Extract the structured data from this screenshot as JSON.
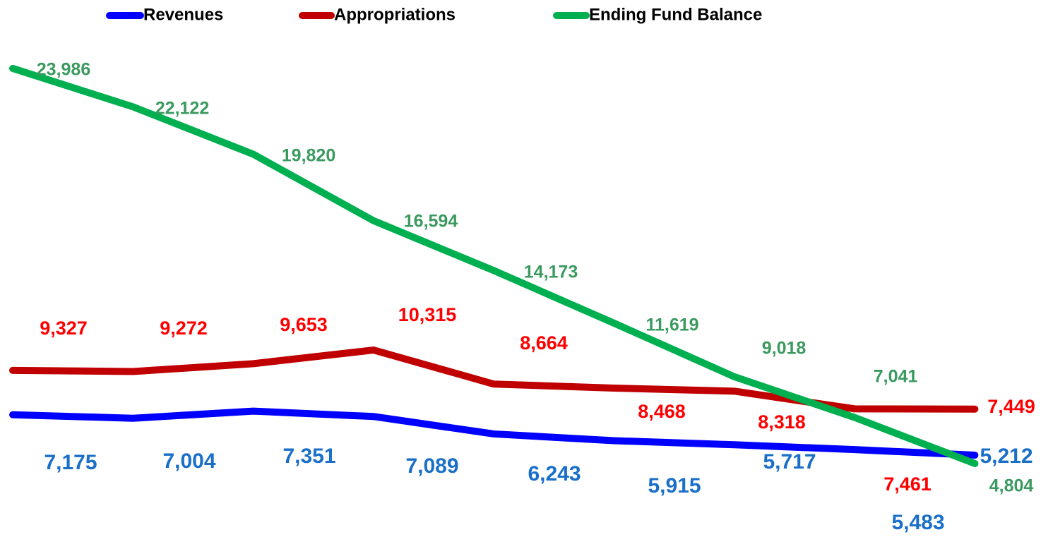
{
  "chart_data": {
    "type": "line",
    "categories": [
      null,
      null,
      null,
      null,
      null,
      null,
      null,
      null,
      null
    ],
    "series": [
      {
        "name": "Revenues",
        "color": "#0000ff",
        "label_color": "#1a6fc9",
        "values": [
          7175,
          7004,
          7351,
          7089,
          6243,
          5915,
          5717,
          5483,
          5212
        ],
        "value_labels": [
          "7,175",
          "7,004",
          "7,351",
          "7,089",
          "6,243",
          "5,915",
          "5,717",
          "5,483",
          "5,212"
        ]
      },
      {
        "name": "Appropriations",
        "color": "#c00000",
        "label_color": "#ff0000",
        "values": [
          9327,
          9272,
          9653,
          10315,
          8664,
          8468,
          8318,
          7461,
          7449
        ],
        "value_labels": [
          "9,327",
          "9,272",
          "9,653",
          "10,315",
          "8,664",
          "8,468",
          "8,318",
          "7,461",
          "7,449"
        ]
      },
      {
        "name": "Ending Fund Balance",
        "color": "#00b050",
        "label_color": "#3a9a5f",
        "values": [
          23986,
          22122,
          19820,
          16594,
          14173,
          11619,
          9018,
          7041,
          4804
        ],
        "value_labels": [
          "23,986",
          "22,122",
          "19,820",
          "16,594",
          "14,173",
          "11,619",
          "9,018",
          "7,041",
          "4,804"
        ]
      }
    ],
    "legend": "top"
  }
}
